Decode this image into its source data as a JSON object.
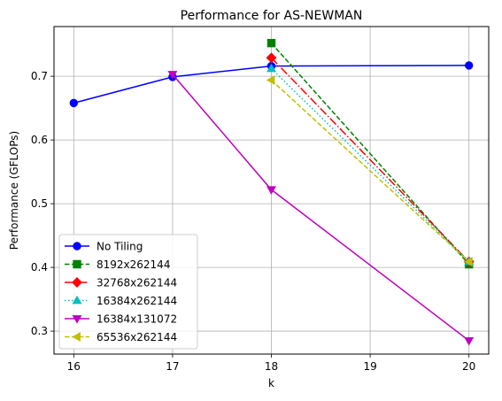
{
  "chart_data": {
    "type": "line",
    "title": "Performance for AS-NEWMAN",
    "xlabel": "k",
    "ylabel": "Performance (GFLOPs)",
    "xlim": [
      15.8,
      20.2
    ],
    "ylim": [
      0.264,
      0.778
    ],
    "xticks": [
      16,
      17,
      18,
      19,
      20
    ],
    "yticks": [
      0.3,
      0.4,
      0.5,
      0.6,
      0.7
    ],
    "grid": true,
    "legend_position": "lower-left",
    "series": [
      {
        "name": "No Tiling",
        "color": "#0000ff",
        "style": "solid",
        "marker": "circle",
        "x": [
          16,
          17,
          18,
          20
        ],
        "values": [
          0.658,
          0.699,
          0.716,
          0.717
        ]
      },
      {
        "name": "8192x262144",
        "color": "#008000",
        "style": "dashed",
        "marker": "square",
        "x": [
          18,
          20
        ],
        "values": [
          0.752,
          0.405
        ]
      },
      {
        "name": "32768x262144",
        "color": "#ff0000",
        "style": "dashdot",
        "marker": "diamond",
        "x": [
          18,
          20
        ],
        "values": [
          0.729,
          0.409
        ]
      },
      {
        "name": "16384x262144",
        "color": "#00bfbf",
        "style": "dotted",
        "marker": "triangle-up",
        "x": [
          18,
          20
        ],
        "values": [
          0.712,
          0.409
        ]
      },
      {
        "name": "16384x131072",
        "color": "#bf00bf",
        "style": "solid",
        "marker": "triangle-down",
        "x": [
          17,
          18,
          20
        ],
        "values": [
          0.703,
          0.522,
          0.285
        ]
      },
      {
        "name": "65536x262144",
        "color": "#bfbf00",
        "style": "dashed",
        "marker": "triangle-left",
        "x": [
          18,
          20
        ],
        "values": [
          0.694,
          0.409
        ]
      }
    ]
  }
}
